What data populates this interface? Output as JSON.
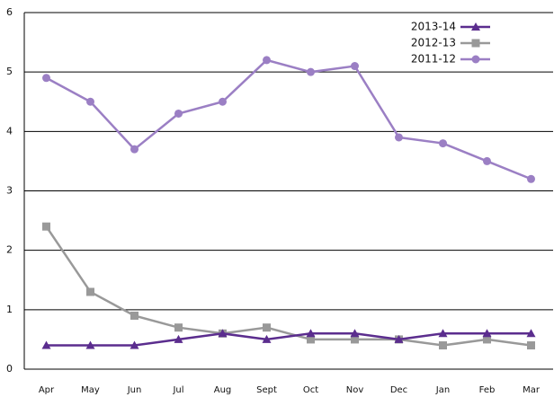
{
  "chart_data": {
    "type": "line",
    "categories": [
      "Apr",
      "May",
      "Jun",
      "Jul",
      "Aug",
      "Sept",
      "Oct",
      "Nov",
      "Dec",
      "Jan",
      "Feb",
      "Mar"
    ],
    "series": [
      {
        "name": "2013-14",
        "color": "#5b2d8e",
        "marker": "triangle",
        "values": [
          0.4,
          0.4,
          0.4,
          0.5,
          0.6,
          0.5,
          0.6,
          0.6,
          0.5,
          0.6,
          0.6,
          0.6
        ]
      },
      {
        "name": "2012-13",
        "color": "#999999",
        "marker": "square",
        "values": [
          2.4,
          1.3,
          0.9,
          0.7,
          0.6,
          0.7,
          0.5,
          0.5,
          0.5,
          0.4,
          0.5,
          0.4
        ]
      },
      {
        "name": "2011-12",
        "color": "#9b7fc4",
        "marker": "circle",
        "values": [
          4.9,
          4.5,
          3.7,
          4.3,
          4.5,
          5.2,
          5.0,
          5.1,
          3.9,
          3.8,
          3.5,
          3.2
        ]
      }
    ],
    "ylim": [
      0,
      6
    ],
    "yticks": [
      0,
      1,
      2,
      3,
      4,
      5,
      6
    ],
    "grid": true,
    "legend": "top-right"
  }
}
